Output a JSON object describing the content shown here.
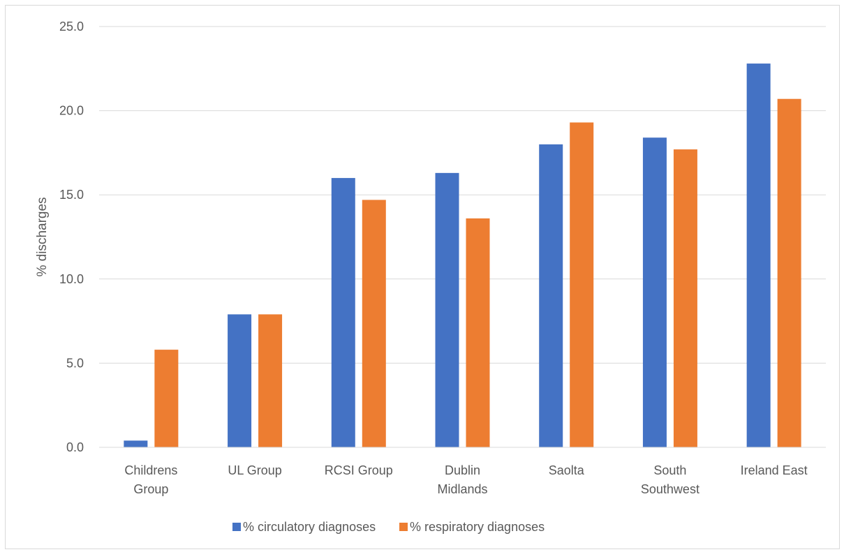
{
  "chart_data": {
    "type": "bar",
    "title": "",
    "xlabel": "",
    "ylabel": "% discharges",
    "ylim": [
      0,
      25
    ],
    "yticks": [
      "0.0",
      "5.0",
      "10.0",
      "15.0",
      "20.0",
      "25.0"
    ],
    "grid": true,
    "legend_position": "bottom",
    "categories": [
      [
        "Childrens",
        "Group"
      ],
      [
        "UL Group"
      ],
      [
        "RCSI Group"
      ],
      [
        "Dublin",
        "Midlands"
      ],
      [
        "Saolta"
      ],
      [
        "South",
        "Southwest"
      ],
      [
        "Ireland East"
      ]
    ],
    "series": [
      {
        "name": "% circulatory diagnoses",
        "color": "#4472c4",
        "values": [
          0.4,
          7.9,
          16.0,
          16.3,
          18.0,
          18.4,
          22.8
        ]
      },
      {
        "name": "% respiratory diagnoses",
        "color": "#ed7d31",
        "values": [
          5.8,
          7.9,
          14.7,
          13.6,
          19.3,
          17.7,
          20.7
        ]
      }
    ]
  }
}
